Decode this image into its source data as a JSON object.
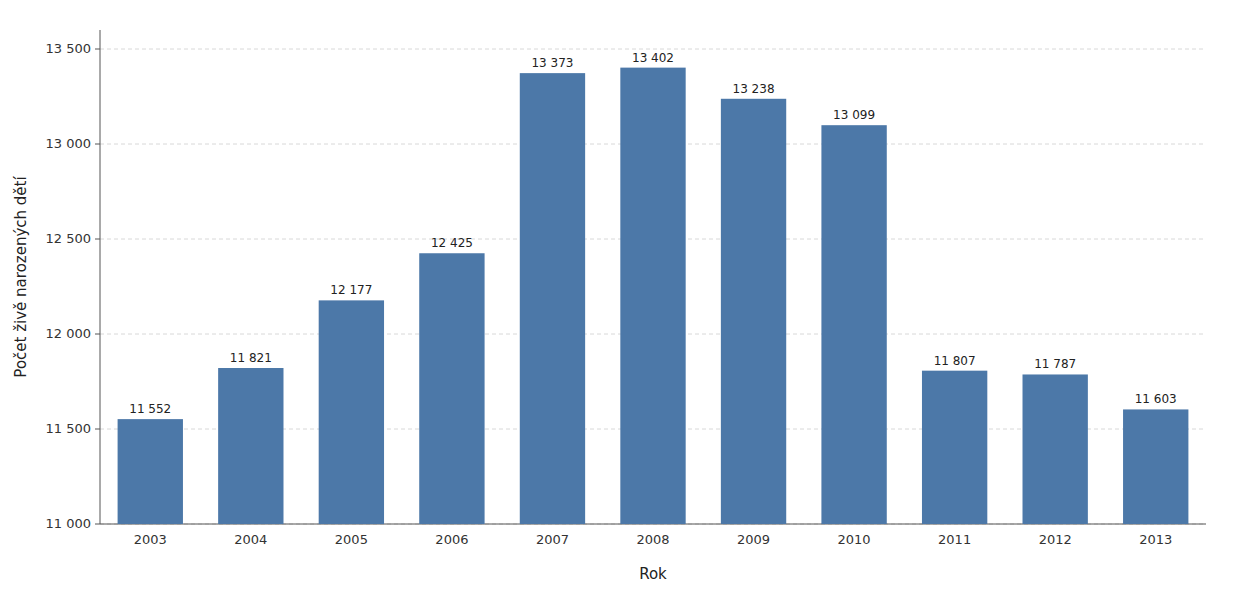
{
  "chart_data": {
    "type": "bar",
    "categories": [
      "2003",
      "2004",
      "2005",
      "2006",
      "2007",
      "2008",
      "2009",
      "2010",
      "2011",
      "2012",
      "2013"
    ],
    "values": [
      11552,
      11821,
      12177,
      12425,
      13373,
      13402,
      13238,
      13099,
      11807,
      11787,
      11603
    ],
    "value_labels": [
      "11 552",
      "11 821",
      "12 177",
      "12 425",
      "13 373",
      "13 402",
      "13 238",
      "13 099",
      "11 807",
      "11 787",
      "11 603"
    ],
    "data_labels": true,
    "xlabel": "Rok",
    "ylabel": "Počet živě narozených dětí",
    "ylim": [
      11000,
      13600
    ],
    "yticks": [
      {
        "value": 11000,
        "label": "11 000"
      },
      {
        "value": 11500,
        "label": "11 500"
      },
      {
        "value": 12000,
        "label": "12 000"
      },
      {
        "value": 12500,
        "label": "12 500"
      },
      {
        "value": 13000,
        "label": "13 000"
      },
      {
        "value": 13500,
        "label": "13 500"
      }
    ],
    "grid": true
  }
}
